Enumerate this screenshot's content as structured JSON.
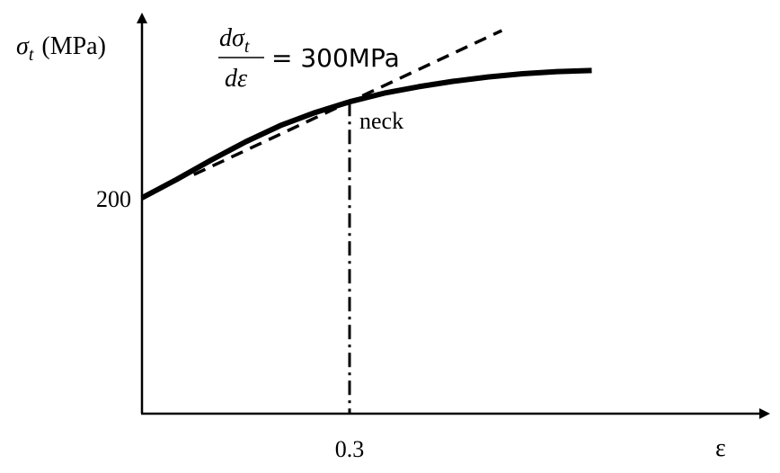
{
  "chart_data": {
    "type": "line",
    "ylabel": {
      "symbol": "σ",
      "subscript": "t",
      "unit": "(MPa)"
    },
    "xlabel": "ε",
    "yticks": [
      {
        "value": 200,
        "label": "200"
      }
    ],
    "xticks": [
      {
        "value": 0.3,
        "label": "0.3"
      }
    ],
    "grid": false,
    "legend": "none",
    "series": [
      {
        "style": "solid-thick",
        "color": "#000000",
        "x": [
          0.0,
          0.05,
          0.1,
          0.15,
          0.2,
          0.25,
          0.3,
          0.35,
          0.4,
          0.45,
          0.5,
          0.55,
          0.6,
          0.65
        ],
        "y": [
          200,
          217,
          235,
          252,
          267,
          279,
          289,
          297,
          303,
          308,
          312,
          315,
          317,
          318
        ]
      }
    ],
    "annotations": {
      "tangent": {
        "style": "dashed",
        "slope": 300,
        "through": [
          0.3,
          289
        ],
        "x_range": [
          0.075,
          0.52
        ]
      },
      "vertical_marker": {
        "style": "dash-dot",
        "x": 0.3,
        "label": "neck"
      },
      "equation": {
        "numerator": "dσ",
        "numerator_sub": "t",
        "denominator": "dε",
        "rhs": "= 300MPa"
      }
    },
    "xlim": [
      0,
      0.92
    ],
    "ylim": [
      0,
      335
    ]
  }
}
